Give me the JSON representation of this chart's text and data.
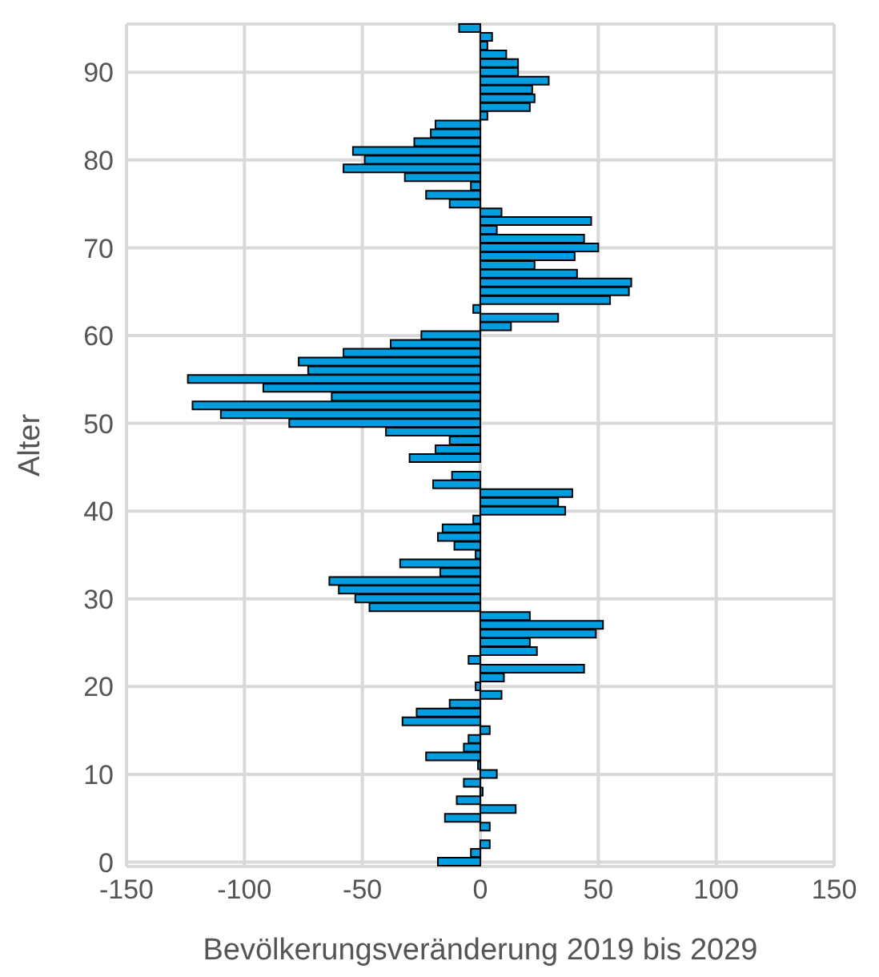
{
  "chart_data": {
    "type": "bar",
    "orientation": "horizontal",
    "xlabel": "Bevölkerungsveränderung 2019 bis 2029",
    "ylabel": "Alter",
    "categories": [
      null,
      null,
      null,
      null,
      null,
      "90",
      null,
      null,
      null,
      null,
      null,
      null,
      null,
      null,
      null,
      "80",
      null,
      null,
      null,
      null,
      null,
      null,
      null,
      null,
      null,
      "70",
      null,
      null,
      null,
      null,
      null,
      null,
      null,
      null,
      null,
      "60",
      null,
      null,
      null,
      null,
      null,
      null,
      null,
      null,
      null,
      "50",
      null,
      null,
      null,
      null,
      null,
      null,
      null,
      null,
      null,
      "40",
      null,
      null,
      null,
      null,
      null,
      null,
      null,
      null,
      null,
      "30",
      null,
      null,
      null,
      null,
      null,
      null,
      null,
      null,
      null,
      "20",
      null,
      null,
      null,
      null,
      null,
      null,
      null,
      null,
      null,
      "10",
      null,
      null,
      null,
      null,
      null,
      null,
      null,
      null,
      null,
      "0"
    ],
    "values": [
      -9,
      5,
      3,
      11,
      16,
      16,
      29,
      22,
      23,
      21,
      3,
      -19,
      -21,
      -28,
      -54,
      -49,
      -58,
      -32,
      -4,
      -23,
      -13,
      9,
      47,
      7,
      44,
      50,
      40,
      23,
      41,
      64,
      63,
      55,
      -3,
      33,
      13,
      -25,
      -38,
      -58,
      -77,
      -73,
      -124,
      -92,
      -63,
      -122,
      -110,
      -81,
      -40,
      -13,
      -19,
      -30,
      0,
      -12,
      -20,
      39,
      33,
      36,
      -3,
      -16,
      -18,
      -11,
      -2,
      -34,
      -17,
      -64,
      -60,
      -53,
      -47,
      21,
      52,
      49,
      21,
      24,
      -5,
      44,
      10,
      -2,
      9,
      -13,
      -27,
      -33,
      4,
      -5,
      -7,
      -23,
      -1,
      7,
      -7,
      1,
      -10,
      15,
      -15,
      4,
      0,
      4,
      -4,
      -18
    ],
    "color": "#009ee0",
    "xlim": [
      -150,
      150
    ],
    "xticks": [
      -150,
      -100,
      -50,
      0,
      50,
      100,
      150
    ],
    "grid": true
  }
}
